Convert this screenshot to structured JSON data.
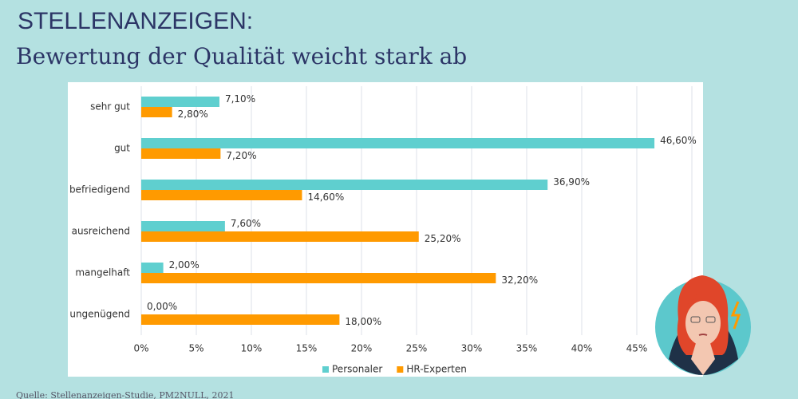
{
  "chart_data": {
    "type": "hbar",
    "title": "STELLENANZEIGEN:",
    "subtitle": "Bewertung der Qualität weicht stark ab",
    "source": "Quelle: Stellenanzeigen-Studie, PM2NULL, 2021",
    "categories": [
      "sehr gut",
      "gut",
      "befriedigend",
      "ausreichend",
      "mangelhaft",
      "ungenügend"
    ],
    "series": [
      {
        "name": "Personaler",
        "color": "#5fcfcf",
        "values": [
          7.1,
          46.6,
          36.9,
          7.6,
          2.0,
          0.0
        ],
        "value_labels": [
          "7,10%",
          "46,60%",
          "36,90%",
          "7,60%",
          "2,00%",
          "0,00%"
        ]
      },
      {
        "name": "HR-Experten",
        "color": "#ff9a00",
        "values": [
          2.8,
          7.2,
          14.6,
          25.2,
          32.2,
          18.0
        ],
        "value_labels": [
          "2,80%",
          "7,20%",
          "14,60%",
          "25,20%",
          "32,20%",
          "18,00%"
        ]
      }
    ],
    "xlim": [
      0,
      50
    ],
    "xticks": [
      {
        "value": 0,
        "label": "0%"
      },
      {
        "value": 5,
        "label": "5%"
      },
      {
        "value": 10,
        "label": "10%"
      },
      {
        "value": 15,
        "label": "15%"
      },
      {
        "value": 20,
        "label": "20%"
      },
      {
        "value": 25,
        "label": "25%"
      },
      {
        "value": 30,
        "label": "30%"
      },
      {
        "value": 35,
        "label": "35%"
      },
      {
        "value": 40,
        "label": "40%"
      },
      {
        "value": 45,
        "label": "45%"
      }
    ],
    "grid": true,
    "legend": "bottom"
  }
}
